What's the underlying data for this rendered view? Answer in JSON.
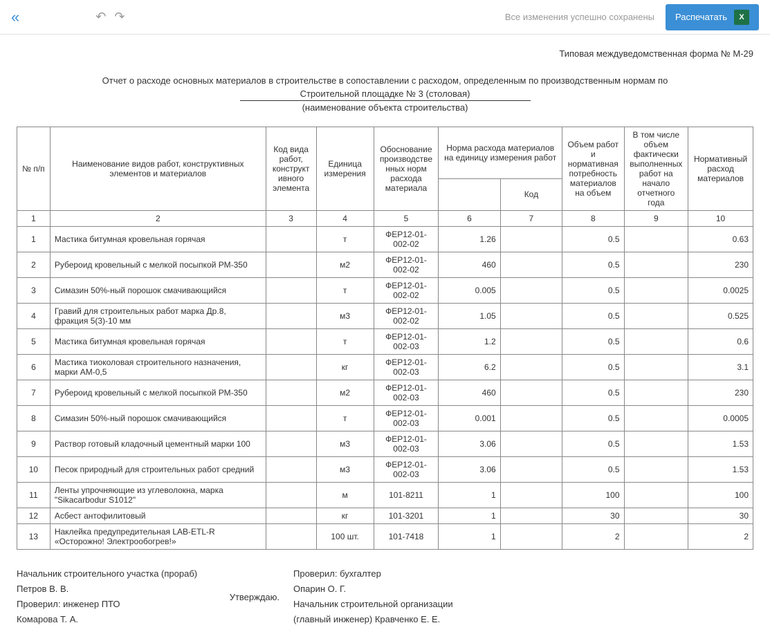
{
  "toolbar": {
    "save_status": "Все изменения успешно сохранены",
    "print_label": "Распечатать",
    "excel_label": "X"
  },
  "header": {
    "form_number": "Типовая междуведомственная форма № М-29",
    "report_title": "Отчет о расходе основных материалов в строительстве в сопоставлении с расходом, определенным по производственным нормам по",
    "object_name": "Строительной площадке № 3 (столовая)",
    "object_label": "(наименование объекта строительства)"
  },
  "table": {
    "headers": {
      "h1": "№ п/п",
      "h2": "Наименование видов работ, конструктивных элементов и материалов",
      "h3": "Код вида работ, конструкт ивного элемента",
      "h4": "Единица измерения",
      "h5": "Обоснование производстве нных норм расхода материала",
      "h6": "Норма расхода материалов на единицу измерения работ",
      "h6b": "Код",
      "h7": "Объем работ и нормативная потребность материалов на объем",
      "h8": "В том числе объем фактически выполненных работ на начало отчетного года",
      "h9": "Нормативный расход материалов"
    },
    "colnums": [
      "1",
      "2",
      "3",
      "4",
      "5",
      "6",
      "7",
      "8",
      "9",
      "10"
    ],
    "rows": [
      {
        "n": "1",
        "name": "Мастика битумная кровельная горячая",
        "code": "",
        "unit": "т",
        "basis": "ФЕР12-01-002-02",
        "norm": "1.26",
        "normcode": "",
        "vol": "0.5",
        "fact": "",
        "normexp": "0.63"
      },
      {
        "n": "2",
        "name": "Рубероид кровельный с мелкой посыпкой РМ-350",
        "code": "",
        "unit": "м2",
        "basis": "ФЕР12-01-002-02",
        "norm": "460",
        "normcode": "",
        "vol": "0.5",
        "fact": "",
        "normexp": "230"
      },
      {
        "n": "3",
        "name": "Симазин 50%-ный порошок смачивающийся",
        "code": "",
        "unit": "т",
        "basis": "ФЕР12-01-002-02",
        "norm": "0.005",
        "normcode": "",
        "vol": "0.5",
        "fact": "",
        "normexp": "0.0025"
      },
      {
        "n": "4",
        "name": "Гравий для строительных работ марка Др.8, фракция 5(3)-10 мм",
        "code": "",
        "unit": "м3",
        "basis": "ФЕР12-01-002-02",
        "norm": "1.05",
        "normcode": "",
        "vol": "0.5",
        "fact": "",
        "normexp": "0.525"
      },
      {
        "n": "5",
        "name": "Мастика битумная кровельная горячая",
        "code": "",
        "unit": "т",
        "basis": "ФЕР12-01-002-03",
        "norm": "1.2",
        "normcode": "",
        "vol": "0.5",
        "fact": "",
        "normexp": "0.6"
      },
      {
        "n": "6",
        "name": "Мастика тиоколовая строительного назначения, марки АМ-0,5",
        "code": "",
        "unit": "кг",
        "basis": "ФЕР12-01-002-03",
        "norm": "6.2",
        "normcode": "",
        "vol": "0.5",
        "fact": "",
        "normexp": "3.1"
      },
      {
        "n": "7",
        "name": "Рубероид кровельный с мелкой посыпкой РМ-350",
        "code": "",
        "unit": "м2",
        "basis": "ФЕР12-01-002-03",
        "norm": "460",
        "normcode": "",
        "vol": "0.5",
        "fact": "",
        "normexp": "230"
      },
      {
        "n": "8",
        "name": "Симазин 50%-ный порошок смачивающийся",
        "code": "",
        "unit": "т",
        "basis": "ФЕР12-01-002-03",
        "norm": "0.001",
        "normcode": "",
        "vol": "0.5",
        "fact": "",
        "normexp": "0.0005"
      },
      {
        "n": "9",
        "name": "Раствор готовый кладочный цементный марки 100",
        "code": "",
        "unit": "м3",
        "basis": "ФЕР12-01-002-03",
        "norm": "3.06",
        "normcode": "",
        "vol": "0.5",
        "fact": "",
        "normexp": "1.53"
      },
      {
        "n": "10",
        "name": "Песок природный для строительных работ средний",
        "code": "",
        "unit": "м3",
        "basis": "ФЕР12-01-002-03",
        "norm": "3.06",
        "normcode": "",
        "vol": "0.5",
        "fact": "",
        "normexp": "1.53"
      },
      {
        "n": "11",
        "name": "Ленты упрочняющие из углеволокна, марка \"Sikacarbodur S1012\"",
        "code": "",
        "unit": "м",
        "basis": "101-8211",
        "norm": "1",
        "normcode": "",
        "vol": "100",
        "fact": "",
        "normexp": "100"
      },
      {
        "n": "12",
        "name": "Асбест антофилитовый",
        "code": "",
        "unit": "кг",
        "basis": "101-3201",
        "norm": "1",
        "normcode": "",
        "vol": "30",
        "fact": "",
        "normexp": "30"
      },
      {
        "n": "13",
        "name": "Наклейка предупредительная LAB-ETL-R «Осторожно! Электрообогрев!»",
        "code": "",
        "unit": "100 шт.",
        "basis": "101-7418",
        "norm": "1",
        "normcode": "",
        "vol": "2",
        "fact": "",
        "normexp": "2"
      }
    ]
  },
  "signatures": {
    "left1": "Начальник строительного участка (прораб)",
    "left2": "Петров В. В.",
    "left3": "Проверил: инженер ПТО",
    "left4": "Комарова Т. А.",
    "approve": "Утверждаю.",
    "right1": "Проверил: бухгалтер",
    "right2": "Опарин О. Г.",
    "right3": "Начальник строительной организации",
    "right4": "(главный инженер) Кравченко Е. Е."
  },
  "style": {
    "accent_color": "#3b8fd6",
    "excel_color": "#1e7145",
    "border_color": "#888888",
    "muted_color": "#999999"
  }
}
